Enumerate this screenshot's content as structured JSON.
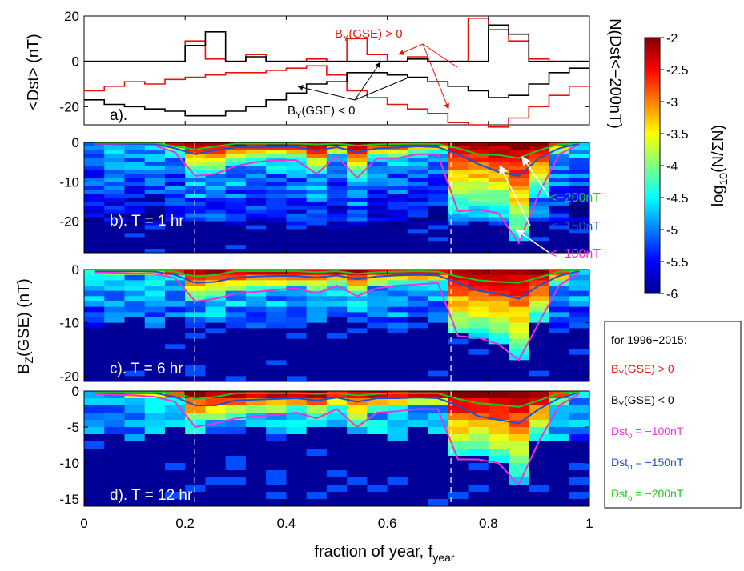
{
  "colors": {
    "by_pos": "#e8140c",
    "by_neg": "#000000",
    "dst100": "#f032dc",
    "dst150": "#1e50d2",
    "dst200": "#1ec81e",
    "marker": "#ffffff"
  },
  "legend": {
    "heading": "for 1996−2015:",
    "items": [
      {
        "text": "BY(GSE) > 0",
        "base": "B",
        "sub": "Y",
        "rest": "(GSE) > 0",
        "color_key": "by_pos"
      },
      {
        "text": "BY(GSE) < 0",
        "base": "B",
        "sub": "Y",
        "rest": "(GSE) < 0",
        "color_key": "by_neg"
      },
      {
        "text": "Dsto = −100nT",
        "base": "Dst",
        "sub": "o",
        "rest": " = −100nT",
        "color_key": "dst100"
      },
      {
        "text": "Dsto = −150nT",
        "base": "Dst",
        "sub": "o",
        "rest": " = −150nT",
        "color_key": "dst150"
      },
      {
        "text": "Dsto = −200nT",
        "base": "Dst",
        "sub": "o",
        "rest": " = −200nT",
        "color_key": "dst200"
      }
    ]
  },
  "colorbar": {
    "label": "log10(NΣN)",
    "label_base": "log",
    "label_sub": "10",
    "label_rest": "(N/ΣN)",
    "range": [
      -6,
      -2
    ],
    "ticks": [
      "-2",
      "-2.5",
      "-3",
      "-3.5",
      "-4",
      "-4.5",
      "-5",
      "-5.5",
      "-6"
    ]
  },
  "xaxis": {
    "label": "fraction of year, fyear",
    "label_main": "fraction of year, f",
    "label_sub": "year",
    "range": [
      0,
      1
    ],
    "ticks": [
      "0",
      "0.2",
      "0.4",
      "0.6",
      "0.8",
      "1"
    ],
    "tick_values": [
      0,
      0.2,
      0.4,
      0.6,
      0.8,
      1
    ],
    "dashed_markers": [
      0.219,
      0.726
    ]
  },
  "bz_ylabel": {
    "text": "BZ(GSE) (nT)",
    "base": "B",
    "sub": "Z",
    "rest": "(GSE) (nT)"
  },
  "chart_data": [
    {
      "type": "line",
      "panel": "a).",
      "ylabel_left": "<Dst> (nT)",
      "ylabel_right": "N(Dst<−200nT)",
      "ylim": [
        -28,
        20
      ],
      "yticks": [
        "20",
        "0",
        "-20"
      ],
      "ytick_values": [
        20,
        0,
        -20
      ],
      "x_bin_width": 0.04,
      "series": [
        {
          "name": "BY(GSE) > 0",
          "kind": "count",
          "color_key": "by_pos",
          "values": [
            0,
            0,
            0,
            0,
            0,
            9,
            1,
            0,
            3,
            0,
            0,
            1,
            0,
            10,
            3,
            0,
            2,
            0,
            0,
            19,
            14,
            9,
            1,
            0,
            0
          ]
        },
        {
          "name": "BY(GSE) < 0",
          "kind": "count",
          "color_key": "by_neg",
          "values": [
            0,
            0,
            0,
            0,
            0,
            7,
            13,
            0,
            2,
            0,
            0,
            0,
            0,
            0,
            0,
            0,
            1,
            0,
            0,
            0,
            16,
            12,
            0,
            0,
            0
          ]
        },
        {
          "name": "BY(GSE) > 0",
          "kind": "mean_dst",
          "color_key": "by_pos",
          "values": [
            -13,
            -11,
            -9,
            -10,
            -8,
            -7,
            -6,
            -5,
            -5,
            -4,
            -3,
            -2,
            -6,
            -13,
            -16,
            -19,
            -21,
            -23,
            -27,
            -28,
            -29,
            -25,
            -20,
            -15,
            -11
          ]
        },
        {
          "name": "BY(GSE) < 0",
          "kind": "mean_dst",
          "color_key": "by_neg",
          "values": [
            -17,
            -19,
            -20,
            -21,
            -22,
            -24,
            -24,
            -22,
            -20,
            -17,
            -14,
            -10,
            -9,
            -5,
            -5,
            -6,
            -7,
            -9,
            -11,
            -13,
            -16,
            -15,
            -10,
            -5,
            -3
          ]
        }
      ],
      "annotations": [
        {
          "text": "BY(GSE) > 0",
          "base": "B",
          "sub": "Y",
          "rest": "(GSE) > 0",
          "color_key": "by_pos"
        },
        {
          "text": "BY(GSE) < 0",
          "base": "B",
          "sub": "Y",
          "rest": "(GSE) < 0",
          "color_key": "by_neg"
        }
      ]
    },
    {
      "type": "heatmap",
      "panel": "b). T = 1 hr",
      "ylim": [
        -28,
        0
      ],
      "yticks": [
        "0",
        "-10",
        "-20"
      ],
      "ytick_values": [
        0,
        -10,
        -20
      ],
      "edge_threshold": -21,
      "x_bin_width": 0.04,
      "y_bin": 1,
      "contours": [
        {
          "name": "Dsto = −100nT",
          "color_key": "dst100",
          "values": [
            -0.5,
            -0.6,
            -0.7,
            -0.8,
            -2.5,
            -8.5,
            -8,
            -6,
            -5,
            -4.5,
            -4.5,
            -8,
            -3.5,
            -9,
            -4,
            -4,
            -3,
            -3,
            -17.5,
            -17,
            -18,
            -25.5,
            -13,
            -3,
            -0.5
          ]
        },
        {
          "name": "Dsto = −150nT",
          "color_key": "dst150",
          "values": [
            -0.3,
            -0.3,
            -0.4,
            -0.4,
            -1.5,
            -3,
            -2,
            -1.2,
            -1.3,
            -1.2,
            -1.2,
            -2,
            -1.2,
            -2.5,
            -1.5,
            -1.3,
            -1,
            -1.2,
            -3,
            -5.5,
            -7.5,
            -8.5,
            -4,
            -1.5,
            -0.3
          ]
        },
        {
          "name": "Dsto = −200nT",
          "color_key": "dst200",
          "values": [
            -0.1,
            -0.1,
            -0.1,
            -0.1,
            -1,
            -1.8,
            -1,
            -0.3,
            -0.3,
            -0.3,
            -0.3,
            -0.5,
            -0.3,
            -0.8,
            -0.5,
            -0.4,
            -0.3,
            -0.4,
            -1.5,
            -3,
            -3.2,
            -4,
            -2,
            -0.5,
            -0.1
          ]
        }
      ],
      "annotations": [
        {
          "text": "<−200nT",
          "color_key": "dst200"
        },
        {
          "text": "<−150nT",
          "color_key": "dst150"
        },
        {
          "text": "<−100nT",
          "color_key": "dst100"
        }
      ]
    },
    {
      "type": "heatmap",
      "panel": "c). T = 6 hr",
      "ylim": [
        -21,
        0
      ],
      "yticks": [
        "0",
        "-10",
        "-20"
      ],
      "ytick_values": [
        0,
        -10,
        -20
      ],
      "edge_threshold": -10,
      "x_bin_width": 0.04,
      "y_bin": 1,
      "contours": [
        {
          "name": "Dsto = −100nT",
          "color_key": "dst100",
          "values": [
            -0.5,
            -0.6,
            -0.7,
            -0.8,
            -1.6,
            -6,
            -5.5,
            -4.5,
            -4.2,
            -3.8,
            -3.5,
            -4.5,
            -3,
            -5,
            -3.5,
            -3,
            -2.8,
            -2.5,
            -12.5,
            -12.8,
            -14,
            -17,
            -10,
            -3,
            -0.5
          ]
        },
        {
          "name": "Dsto = −150nT",
          "color_key": "dst150",
          "values": [
            -0.3,
            -0.3,
            -0.3,
            -0.4,
            -1,
            -2.5,
            -2.3,
            -1.5,
            -1.3,
            -1.2,
            -1.2,
            -1.5,
            -1.1,
            -1.8,
            -1.3,
            -1.1,
            -1,
            -1.1,
            -2.5,
            -4,
            -4.5,
            -5.5,
            -3,
            -1.2,
            -0.3
          ]
        },
        {
          "name": "Dsto = −200nT",
          "color_key": "dst200",
          "values": [
            -0.1,
            -0.1,
            -0.1,
            -0.1,
            -0.4,
            -1.3,
            -1,
            -0.3,
            -0.3,
            -0.3,
            -0.3,
            -0.5,
            -0.3,
            -0.8,
            -0.5,
            -0.4,
            -0.3,
            -0.4,
            -1.3,
            -2,
            -2.3,
            -2.5,
            -1.5,
            -0.4,
            -0.1
          ]
        }
      ]
    },
    {
      "type": "heatmap",
      "panel": "d). T = 12 hr",
      "ylim": [
        -16,
        0
      ],
      "yticks": [
        "0",
        "-5",
        "-10",
        "-15"
      ],
      "ytick_values": [
        0,
        -5,
        -10,
        -15
      ],
      "edge_threshold": -6,
      "x_bin_width": 0.04,
      "y_bin": 1,
      "contours": [
        {
          "name": "Dsto = −100nT",
          "color_key": "dst100",
          "values": [
            -0.4,
            -0.5,
            -0.6,
            -0.8,
            -1.5,
            -5,
            -4.5,
            -3.8,
            -3.5,
            -3.3,
            -3,
            -3.8,
            -2.5,
            -5,
            -3,
            -2.8,
            -2.5,
            -2.5,
            -9.5,
            -9.5,
            -10,
            -13,
            -7,
            -2,
            -0.4
          ]
        },
        {
          "name": "Dsto = −150nT",
          "color_key": "dst150",
          "values": [
            -0.2,
            -0.3,
            -0.3,
            -0.3,
            -0.8,
            -2,
            -2,
            -1.3,
            -1.2,
            -1.1,
            -1,
            -1.3,
            -0.9,
            -1.5,
            -1,
            -1,
            -0.9,
            -1,
            -2,
            -3.5,
            -4,
            -4.5,
            -2.5,
            -1,
            -0.2
          ]
        },
        {
          "name": "Dsto = −200nT",
          "color_key": "dst200",
          "values": [
            -0.1,
            -0.1,
            -0.1,
            -0.1,
            -0.3,
            -1.1,
            -0.8,
            -0.3,
            -0.3,
            -0.3,
            -0.3,
            -0.4,
            -0.3,
            -0.6,
            -0.4,
            -0.3,
            -0.3,
            -0.3,
            -1.1,
            -1.7,
            -1.9,
            -2.2,
            -1.3,
            -0.3,
            -0.1
          ]
        }
      ]
    }
  ]
}
